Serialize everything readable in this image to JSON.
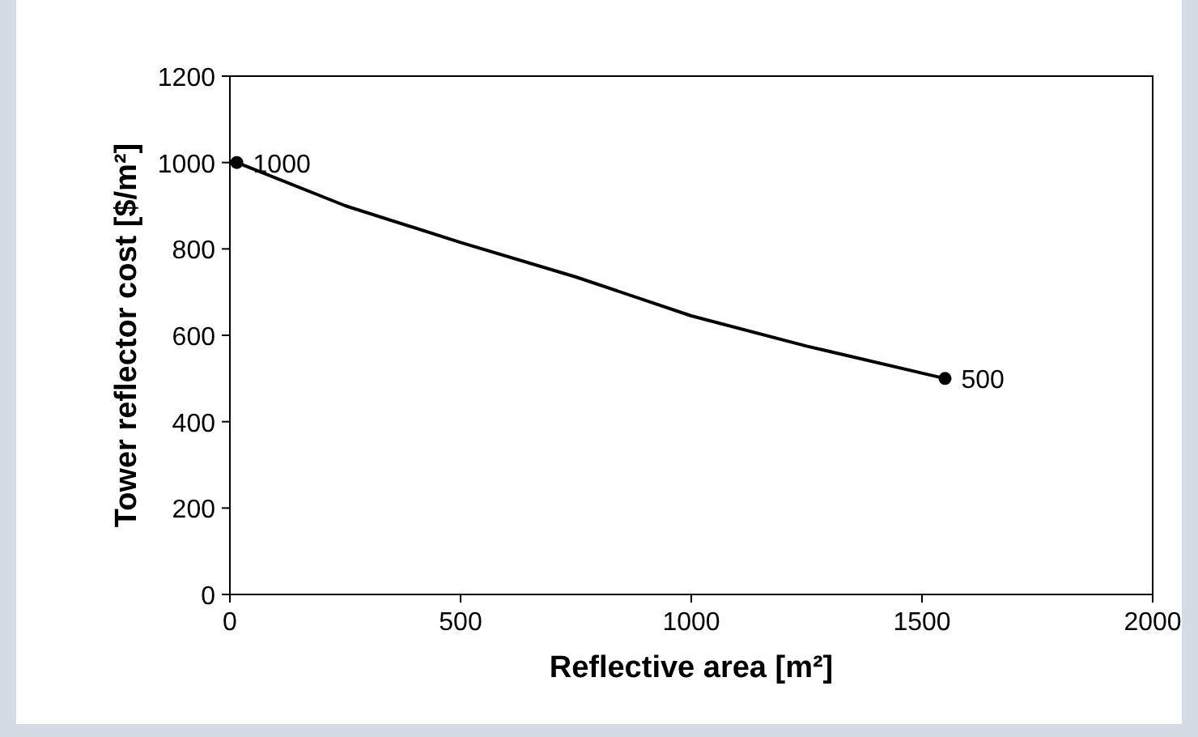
{
  "chart_data": {
    "type": "line",
    "xlabel": "Reflective area [m²]",
    "ylabel": "Tower reflector cost [$/m²]",
    "xlim": [
      0,
      2000
    ],
    "xticks": [
      0,
      500,
      1000,
      1500,
      2000
    ],
    "ylim": [
      0,
      1200
    ],
    "yticks": [
      0,
      200,
      400,
      600,
      800,
      1000,
      1200
    ],
    "grid": false,
    "series": [
      {
        "color": "#000000",
        "x": [
          15,
          250,
          500,
          750,
          1000,
          1250,
          1550
        ],
        "values": [
          1000,
          900,
          815,
          735,
          645,
          575,
          500
        ],
        "marker": "none",
        "line_style": "solid"
      },
      {
        "type": "scatter",
        "color": "#000000",
        "x": [
          15,
          1550
        ],
        "values": [
          1000,
          500
        ],
        "marker": "circle",
        "value_labels": [
          "1000",
          "500"
        ]
      }
    ]
  }
}
